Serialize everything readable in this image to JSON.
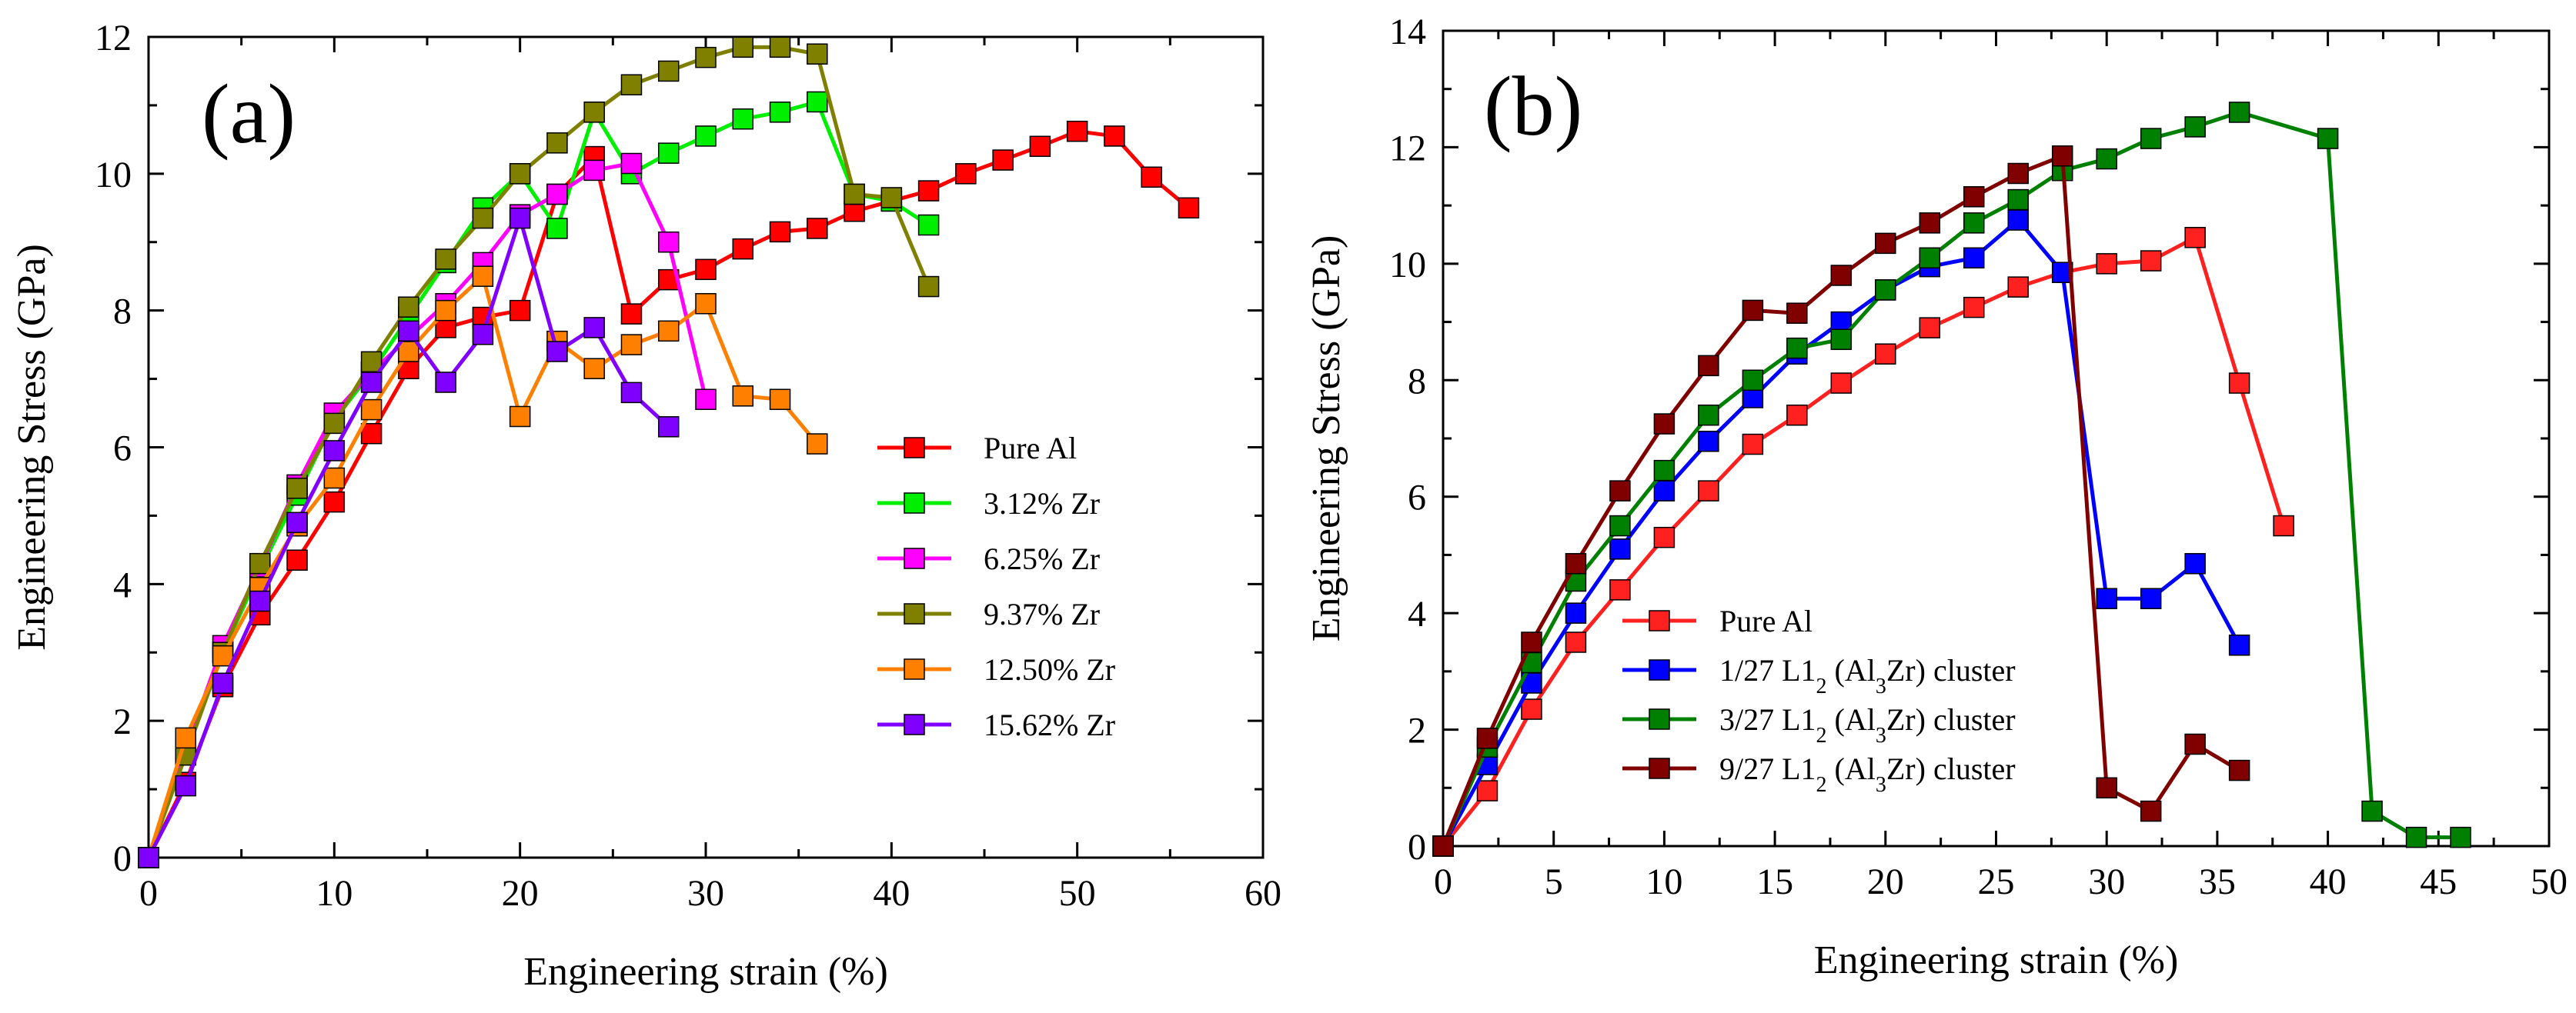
{
  "chart_data": [
    {
      "type": "line",
      "panel_label": "(a)",
      "xlabel": "Engineering strain (%)",
      "ylabel": "Engineering Stress (GPa)",
      "xlim": [
        0,
        60
      ],
      "ylim": [
        0,
        12
      ],
      "xticks": [
        0,
        10,
        20,
        30,
        40,
        50,
        60
      ],
      "yticks": [
        0,
        2,
        4,
        6,
        8,
        10,
        12
      ],
      "grid": false,
      "legend_position": "center-right",
      "marker": "square",
      "series": [
        {
          "name": "Pure Al",
          "color": "#ff0000",
          "x": [
            0,
            2,
            4,
            6,
            8,
            10,
            12,
            14,
            16,
            18,
            20,
            22,
            24,
            26,
            28,
            30,
            32,
            34,
            36,
            38,
            40,
            42,
            44,
            46,
            48,
            50,
            52,
            54,
            56
          ],
          "y": [
            0,
            1.1,
            2.5,
            3.55,
            4.35,
            5.2,
            6.2,
            7.15,
            7.75,
            7.9,
            8.0,
            9.7,
            10.25,
            7.95,
            8.45,
            8.6,
            8.9,
            9.15,
            9.2,
            9.45,
            9.6,
            9.75,
            10.0,
            10.2,
            10.4,
            10.62,
            10.55,
            9.95,
            9.5
          ]
        },
        {
          "name": "3.12% Zr",
          "color": "#00ee00",
          "x": [
            0,
            2,
            4,
            6,
            8,
            10,
            12,
            14,
            16,
            18,
            20,
            22,
            24,
            26,
            28,
            30,
            32,
            34,
            36,
            38,
            40,
            42
          ],
          "y": [
            0,
            1.5,
            3.0,
            4.2,
            5.3,
            6.4,
            7.1,
            7.9,
            8.7,
            9.5,
            10.0,
            9.2,
            10.9,
            10.0,
            10.3,
            10.55,
            10.8,
            10.9,
            11.05,
            9.7,
            9.6,
            9.25
          ]
        },
        {
          "name": "6.25% Zr",
          "color": "#ff00ff",
          "x": [
            0,
            2,
            4,
            6,
            8,
            10,
            12,
            14,
            16,
            18,
            20,
            22,
            24,
            26,
            28,
            30
          ],
          "y": [
            0,
            1.6,
            3.1,
            4.25,
            5.45,
            6.5,
            7.1,
            7.6,
            8.1,
            8.7,
            9.4,
            9.7,
            10.05,
            10.15,
            9.0,
            6.7
          ]
        },
        {
          "name": "9.37% Zr",
          "color": "#808000",
          "x": [
            0,
            2,
            4,
            6,
            8,
            10,
            12,
            14,
            16,
            18,
            20,
            22,
            24,
            26,
            28,
            30,
            32,
            34,
            36,
            38,
            40,
            42
          ],
          "y": [
            0,
            1.5,
            3.0,
            4.3,
            5.4,
            6.35,
            7.25,
            8.05,
            8.75,
            9.35,
            10.0,
            10.45,
            10.9,
            11.3,
            11.5,
            11.7,
            11.85,
            11.85,
            11.75,
            9.7,
            9.65,
            8.35
          ]
        },
        {
          "name": "12.50% Zr",
          "color": "#ff8000",
          "x": [
            0,
            2,
            4,
            6,
            8,
            10,
            12,
            14,
            16,
            18,
            20,
            22,
            24,
            26,
            28,
            30,
            32,
            34,
            36
          ],
          "y": [
            0,
            1.75,
            2.95,
            3.95,
            4.85,
            5.55,
            6.55,
            7.4,
            8.0,
            8.5,
            6.45,
            7.55,
            7.15,
            7.5,
            7.7,
            8.1,
            6.75,
            6.7,
            6.05
          ]
        },
        {
          "name": "15.62% Zr",
          "color": "#8000ff",
          "x": [
            0,
            2,
            4,
            6,
            8,
            10,
            12,
            14,
            16,
            18,
            20,
            22,
            24,
            26,
            28
          ],
          "y": [
            0,
            1.05,
            2.55,
            3.75,
            4.9,
            5.95,
            6.95,
            7.7,
            6.95,
            7.65,
            9.35,
            7.4,
            7.75,
            6.8,
            6.3
          ]
        }
      ]
    },
    {
      "type": "line",
      "panel_label": "(b)",
      "xlabel": "Engineering strain (%)",
      "ylabel": "Engineering Stress (GPa)",
      "xlim": [
        0,
        50
      ],
      "ylim": [
        0,
        14
      ],
      "xticks": [
        0,
        5,
        10,
        15,
        20,
        25,
        30,
        35,
        40,
        45,
        50
      ],
      "yticks": [
        0,
        2,
        4,
        6,
        8,
        10,
        12,
        14
      ],
      "grid": false,
      "legend_position": "lower-left",
      "marker": "square",
      "series": [
        {
          "name": "Pure Al",
          "name_parts": [
            "Pure Al"
          ],
          "color": "#ff2020",
          "x": [
            0,
            2,
            4,
            6,
            8,
            10,
            12,
            14,
            16,
            18,
            20,
            22,
            24,
            26,
            28,
            30,
            32,
            34,
            36,
            38
          ],
          "y": [
            0,
            0.95,
            2.35,
            3.5,
            4.4,
            5.3,
            6.1,
            6.9,
            7.4,
            7.95,
            8.45,
            8.9,
            9.25,
            9.6,
            9.85,
            10.0,
            10.05,
            10.45,
            7.95,
            5.5
          ]
        },
        {
          "name": "1/27 L12 (Al3Zr) cluster",
          "name_parts": [
            "1/27 L1",
            "2",
            " (Al",
            "3",
            "Zr) cluster"
          ],
          "color": "#0000ff",
          "x": [
            0,
            2,
            4,
            6,
            8,
            10,
            12,
            14,
            16,
            18,
            20,
            22,
            24,
            26,
            28,
            30,
            32,
            34,
            36
          ],
          "y": [
            0,
            1.4,
            2.8,
            4.0,
            5.1,
            6.1,
            6.95,
            7.7,
            8.45,
            9.0,
            9.55,
            9.95,
            10.1,
            10.75,
            9.85,
            4.25,
            4.25,
            4.85,
            3.45
          ]
        },
        {
          "name": "3/27 L12 (Al3Zr) cluster",
          "name_parts": [
            "3/27 L1",
            "2",
            " (Al",
            "3",
            "Zr) cluster"
          ],
          "color": "#008000",
          "x": [
            0,
            2,
            4,
            6,
            8,
            10,
            12,
            14,
            16,
            18,
            20,
            22,
            24,
            26,
            28,
            30,
            32,
            34,
            36,
            40,
            42,
            44,
            46
          ],
          "y": [
            0,
            1.7,
            3.15,
            4.55,
            5.5,
            6.45,
            7.4,
            8.0,
            8.55,
            8.7,
            9.55,
            10.1,
            10.7,
            11.1,
            11.6,
            11.8,
            12.15,
            12.35,
            12.6,
            12.15,
            0.6,
            0.15,
            0.15
          ]
        },
        {
          "name": "9/27 L12 (Al3Zr) cluster",
          "name_parts": [
            "9/27 L1",
            "2",
            " (Al",
            "3",
            "Zr) cluster"
          ],
          "color": "#800000",
          "x": [
            0,
            2,
            4,
            6,
            8,
            10,
            12,
            14,
            16,
            18,
            20,
            22,
            24,
            26,
            28,
            30,
            32,
            34,
            36
          ],
          "y": [
            0,
            1.85,
            3.5,
            4.85,
            6.1,
            7.25,
            8.25,
            9.2,
            9.15,
            9.8,
            10.35,
            10.7,
            11.15,
            11.55,
            11.85,
            1.0,
            0.6,
            1.75,
            1.3
          ]
        }
      ]
    }
  ]
}
